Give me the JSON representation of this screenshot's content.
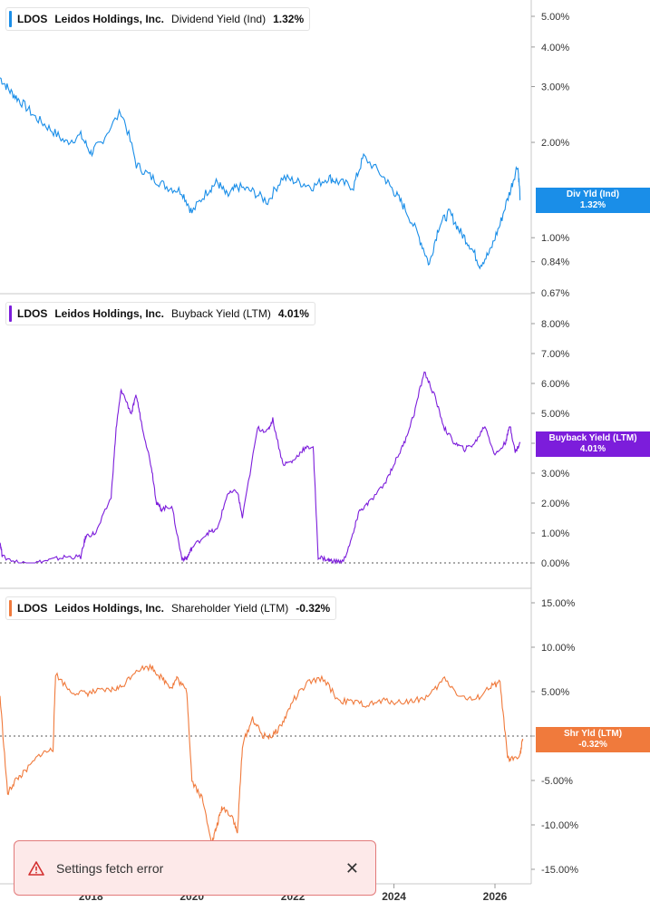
{
  "colors": {
    "dividend": "#1a8ee8",
    "buyback": "#7c1ddb",
    "shareholder": "#f07a3c",
    "toast_bg": "#fde9e9",
    "toast_border": "#e27a7a",
    "warn": "#d32f2f"
  },
  "panels": [
    {
      "ticker": "LDOS",
      "company": "Leidos Holdings, Inc.",
      "metric": "Dividend Yield (Ind)",
      "value": "1.32%",
      "tag_line1": "Div Yld (Ind)",
      "tag_line2": "1.32%",
      "y_ticks": [
        "5.00%",
        "4.00%",
        "3.00%",
        "2.00%",
        "1.00%",
        "0.84%",
        "0.67%"
      ]
    },
    {
      "ticker": "LDOS",
      "company": "Leidos Holdings, Inc.",
      "metric": "Buyback Yield (LTM)",
      "value": "4.01%",
      "tag_line1": "Buyback Yield (LTM)",
      "tag_line2": "4.01%",
      "y_ticks": [
        "8.00%",
        "7.00%",
        "6.00%",
        "5.00%",
        "4.00%",
        "3.00%",
        "2.00%",
        "1.00%",
        "0.00%"
      ]
    },
    {
      "ticker": "LDOS",
      "company": "Leidos Holdings, Inc.",
      "metric": "Shareholder Yield (LTM)",
      "value": "-0.32%",
      "tag_line1": "Shr Yld (LTM)",
      "tag_line2": "-0.32%",
      "y_ticks": [
        "15.00%",
        "10.00%",
        "5.00%",
        "0.00%",
        "-5.00%",
        "-10.00%",
        "-15.00%"
      ]
    }
  ],
  "x_ticks": [
    "2018",
    "2020",
    "2022",
    "2024",
    "2026"
  ],
  "toast": {
    "message": "Settings fetch error",
    "close_icon": "close-icon",
    "warn_icon": "warning-triangle-icon"
  },
  "chart_data": [
    {
      "type": "line",
      "title": "LDOS Leidos Holdings, Inc. Dividend Yield (Ind)",
      "y_scale": "log",
      "ylim": [
        0.67,
        5.5
      ],
      "xlim": [
        2016.2,
        2026.7
      ],
      "series": [
        {
          "name": "Dividend Yield (Ind)",
          "x": [
            2016.2,
            2016.4,
            2016.6,
            2016.9,
            2017.2,
            2017.5,
            2017.8,
            2018.0,
            2018.2,
            2018.6,
            2018.9,
            2019.2,
            2019.5,
            2019.8,
            2020.0,
            2020.3,
            2020.5,
            2020.7,
            2020.9,
            2021.2,
            2021.5,
            2021.8,
            2022.1,
            2022.4,
            2022.7,
            2022.9,
            2023.2,
            2023.4,
            2023.8,
            2024.0,
            2024.2,
            2024.5,
            2024.7,
            2024.9,
            2025.1,
            2025.3,
            2025.5,
            2025.7,
            2025.9,
            2026.1,
            2026.3,
            2026.45,
            2026.5
          ],
          "y": [
            3.2,
            2.9,
            2.7,
            2.4,
            2.2,
            2.0,
            2.1,
            1.85,
            2.0,
            2.5,
            1.7,
            1.55,
            1.45,
            1.4,
            1.2,
            1.4,
            1.5,
            1.35,
            1.45,
            1.4,
            1.3,
            1.55,
            1.5,
            1.45,
            1.55,
            1.5,
            1.45,
            1.8,
            1.55,
            1.4,
            1.25,
            1.0,
            0.82,
            1.1,
            1.2,
            1.05,
            0.95,
            0.82,
            0.9,
            1.1,
            1.4,
            1.7,
            1.32
          ]
        }
      ]
    },
    {
      "type": "line",
      "title": "LDOS Leidos Holdings, Inc. Buyback Yield (LTM)",
      "ylim": [
        0,
        8
      ],
      "xlim": [
        2016.2,
        2026.7
      ],
      "series": [
        {
          "name": "Buyback Yield (LTM)",
          "x": [
            2016.2,
            2016.25,
            2016.6,
            2016.9,
            2017.2,
            2017.5,
            2017.8,
            2017.9,
            2018.1,
            2018.4,
            2018.5,
            2018.6,
            2018.8,
            2018.9,
            2019.0,
            2019.2,
            2019.3,
            2019.4,
            2019.6,
            2019.8,
            2019.9,
            2020.0,
            2020.3,
            2020.5,
            2020.7,
            2020.9,
            2021.0,
            2021.3,
            2021.5,
            2021.6,
            2021.8,
            2022.0,
            2022.2,
            2022.4,
            2022.5,
            2022.7,
            2022.8,
            2023.0,
            2023.2,
            2023.3,
            2023.5,
            2023.8,
            2024.0,
            2024.2,
            2024.4,
            2024.6,
            2024.8,
            2025.0,
            2025.2,
            2025.4,
            2025.6,
            2025.8,
            2026.0,
            2026.2,
            2026.3,
            2026.4,
            2026.5
          ],
          "y": [
            0.7,
            0.2,
            0.0,
            0.0,
            0.1,
            0.2,
            0.2,
            0.9,
            1.0,
            2.2,
            4.5,
            5.8,
            5.0,
            5.6,
            4.7,
            3.2,
            2.0,
            1.8,
            1.9,
            0.15,
            0.15,
            0.5,
            1.0,
            1.1,
            2.3,
            2.4,
            1.5,
            4.5,
            4.4,
            4.8,
            3.3,
            3.4,
            3.8,
            3.9,
            0.2,
            0.1,
            0.05,
            0.05,
            1.0,
            1.7,
            2.0,
            2.6,
            3.3,
            4.0,
            5.0,
            6.4,
            5.6,
            4.5,
            4.0,
            3.8,
            4.0,
            4.6,
            3.6,
            4.0,
            4.6,
            3.7,
            4.01
          ]
        }
      ]
    },
    {
      "type": "line",
      "title": "LDOS Leidos Holdings, Inc. Shareholder Yield (LTM)",
      "ylim": [
        -15,
        15
      ],
      "xlim": [
        2016.2,
        2026.7
      ],
      "series": [
        {
          "name": "Shareholder Yield (LTM)",
          "x": [
            2016.2,
            2016.35,
            2016.5,
            2016.7,
            2017.0,
            2017.25,
            2017.3,
            2017.6,
            2017.9,
            2018.1,
            2018.4,
            2018.6,
            2018.9,
            2019.2,
            2019.4,
            2019.6,
            2019.7,
            2019.9,
            2020.0,
            2020.2,
            2020.4,
            2020.5,
            2020.6,
            2020.8,
            2020.9,
            2021.0,
            2021.2,
            2021.4,
            2021.6,
            2021.8,
            2022.0,
            2022.3,
            2022.6,
            2022.9,
            2023.2,
            2023.5,
            2023.8,
            2024.1,
            2024.4,
            2024.7,
            2025.0,
            2025.3,
            2025.6,
            2025.9,
            2026.1,
            2026.25,
            2026.3,
            2026.5,
            2026.55
          ],
          "y": [
            4.5,
            -6.5,
            -5.0,
            -4.0,
            -2.0,
            -1.5,
            7.0,
            5.0,
            4.8,
            5.0,
            5.2,
            5.5,
            7.5,
            7.8,
            6.5,
            5.5,
            6.5,
            5.0,
            -5.0,
            -7.0,
            -12.0,
            -10.0,
            -8.0,
            -9.0,
            -11.0,
            -1.0,
            2.0,
            0.0,
            0.0,
            1.5,
            4.0,
            6.0,
            6.5,
            4.0,
            3.8,
            3.5,
            4.0,
            3.8,
            4.0,
            4.5,
            6.5,
            4.5,
            4.0,
            5.5,
            6.0,
            -2.5,
            -2.7,
            -2.0,
            -0.32
          ]
        }
      ]
    }
  ]
}
